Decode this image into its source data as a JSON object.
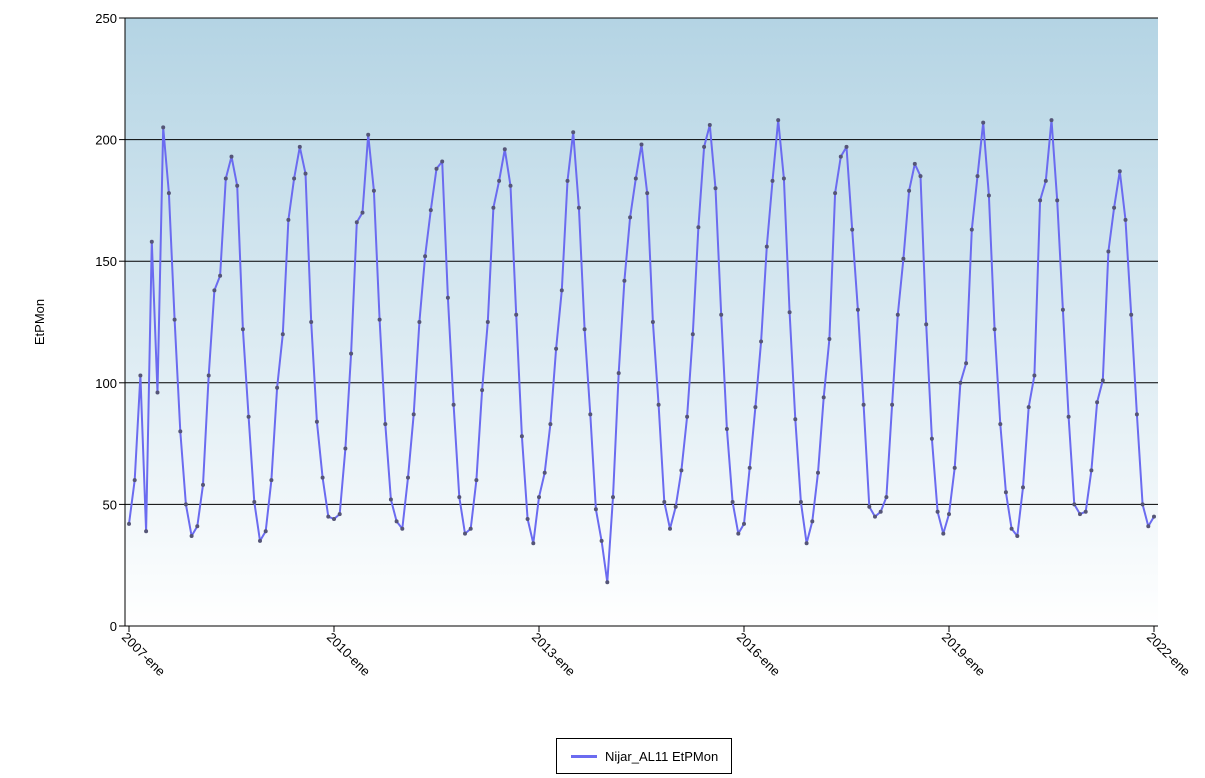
{
  "chart_data": {
    "type": "line",
    "ylabel": "EtPMon",
    "xlabel": "",
    "ylim": [
      0,
      250
    ],
    "yticks": [
      0,
      50,
      100,
      150,
      200,
      250
    ],
    "xticks": [
      "2007-ene",
      "2010-ene",
      "2013-ene",
      "2016-ene",
      "2019-ene",
      "2022-ene"
    ],
    "x_start": "2007-01",
    "x_end": "2022-01",
    "grid": true,
    "legend_position": "bottom-center",
    "colors": {
      "series": "#6b6bf0",
      "marker": "#555577",
      "grid": "#000000",
      "bg_top": "#b4d4e4",
      "bg_bottom": "#ffffff"
    },
    "series": [
      {
        "name": "Nijar_AL11 EtPMon",
        "values": [
          42,
          60,
          103,
          39,
          158,
          96,
          205,
          178,
          126,
          80,
          50,
          37,
          41,
          58,
          103,
          138,
          144,
          184,
          193,
          181,
          122,
          86,
          51,
          35,
          39,
          60,
          98,
          120,
          167,
          184,
          197,
          186,
          125,
          84,
          61,
          45,
          44,
          46,
          73,
          112,
          166,
          170,
          202,
          179,
          126,
          83,
          52,
          43,
          40,
          61,
          87,
          125,
          152,
          171,
          188,
          191,
          135,
          91,
          53,
          38,
          40,
          60,
          97,
          125,
          172,
          183,
          196,
          181,
          128,
          78,
          44,
          34,
          53,
          63,
          83,
          114,
          138,
          183,
          203,
          172,
          122,
          87,
          48,
          35,
          18,
          53,
          104,
          142,
          168,
          184,
          198,
          178,
          125,
          91,
          51,
          40,
          49,
          64,
          86,
          120,
          164,
          197,
          206,
          180,
          128,
          81,
          51,
          38,
          42,
          65,
          90,
          117,
          156,
          183,
          208,
          184,
          129,
          85,
          51,
          34,
          43,
          63,
          94,
          118,
          178,
          193,
          197,
          163,
          130,
          91,
          49,
          45,
          47,
          53,
          91,
          128,
          151,
          179,
          190,
          185,
          124,
          77,
          47,
          38,
          46,
          65,
          100,
          108,
          163,
          185,
          207,
          177,
          122,
          83,
          55,
          40,
          37,
          57,
          90,
          103,
          175,
          183,
          208,
          175,
          130,
          86,
          50,
          46,
          47,
          64,
          92,
          101,
          154,
          172,
          187,
          167,
          128,
          87,
          50,
          41,
          45
        ]
      }
    ]
  },
  "legend": {
    "label": "Nijar_AL11 EtPMon"
  }
}
